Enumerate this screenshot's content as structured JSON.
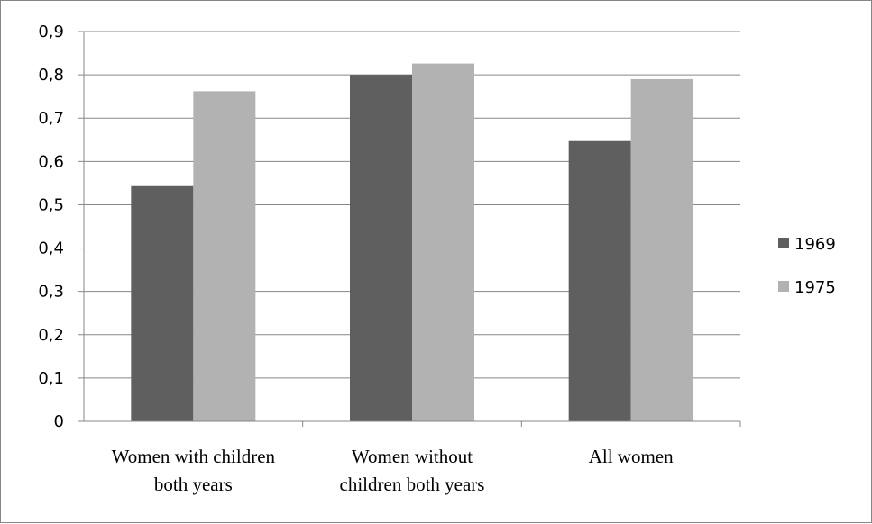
{
  "chart_data": {
    "type": "bar",
    "categories": [
      [
        "Women with children",
        "both years"
      ],
      [
        "Women without",
        "children both years"
      ],
      [
        "All women"
      ]
    ],
    "series": [
      {
        "name": "1969",
        "values": [
          0.543,
          0.8,
          0.647
        ],
        "color": "#5f5f5f"
      },
      {
        "name": "1975",
        "values": [
          0.762,
          0.826,
          0.79
        ],
        "color": "#b2b2b2"
      }
    ],
    "yticks": [
      "0",
      "0,1",
      "0,2",
      "0,3",
      "0,4",
      "0,5",
      "0,6",
      "0,7",
      "0,8",
      "0,9"
    ],
    "ylim": [
      0,
      0.9
    ],
    "grid": true,
    "legend_position": "right"
  }
}
